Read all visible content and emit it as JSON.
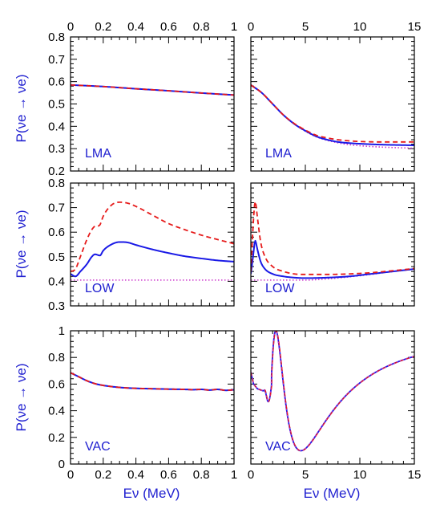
{
  "colors": {
    "solid": "#1a1ae6",
    "dashed": "#e61a1a",
    "dotted": "#cc33cc"
  },
  "y_axis_label": "P(νe → νe)",
  "x_axis_label": "Eν (MeV)",
  "chart_data": [
    {
      "type": "line",
      "label": "LMA",
      "xlim": [
        0,
        1
      ],
      "ylim": [
        0.2,
        0.8
      ],
      "xticks": [
        "0",
        "0.2",
        "0.4",
        "0.6",
        "0.8",
        "1"
      ],
      "yticks": [
        "0.2",
        "0.3",
        "0.4",
        "0.5",
        "0.6",
        "0.7",
        "0.8"
      ],
      "series": [
        {
          "style": "solid",
          "x": [
            0,
            0.2,
            0.4,
            0.6,
            0.8,
            1
          ],
          "y": [
            0.585,
            0.578,
            0.568,
            0.559,
            0.549,
            0.54
          ]
        },
        {
          "style": "dashed",
          "x": [
            0,
            0.2,
            0.4,
            0.6,
            0.8,
            1
          ],
          "y": [
            0.585,
            0.578,
            0.568,
            0.559,
            0.549,
            0.54
          ]
        },
        {
          "style": "dotted",
          "x": [
            0,
            0.2,
            0.4,
            0.6,
            0.8,
            1
          ],
          "y": [
            0.585,
            0.578,
            0.568,
            0.559,
            0.549,
            0.54
          ]
        }
      ]
    },
    {
      "type": "line",
      "label": "LMA",
      "xlim": [
        0,
        15
      ],
      "ylim": [
        0.2,
        0.8
      ],
      "xticks": [
        "0",
        "5",
        "10",
        "15"
      ],
      "yticks": [
        "0.2",
        "0.3",
        "0.4",
        "0.5",
        "0.6",
        "0.7",
        "0.8"
      ],
      "series": [
        {
          "style": "solid",
          "x": [
            0,
            1,
            2,
            3,
            4,
            5,
            6,
            7,
            8,
            9,
            10,
            12,
            15
          ],
          "y": [
            0.585,
            0.55,
            0.5,
            0.45,
            0.41,
            0.38,
            0.355,
            0.34,
            0.33,
            0.325,
            0.322,
            0.318,
            0.315
          ]
        },
        {
          "style": "dashed",
          "x": [
            0,
            1,
            2,
            3,
            4,
            5,
            6,
            7,
            8,
            9,
            10,
            12,
            15
          ],
          "y": [
            0.585,
            0.55,
            0.5,
            0.45,
            0.412,
            0.383,
            0.36,
            0.348,
            0.34,
            0.335,
            0.332,
            0.33,
            0.33
          ]
        },
        {
          "style": "dotted",
          "x": [
            0,
            1,
            2,
            3,
            4,
            5,
            6,
            7,
            8,
            9,
            10,
            12,
            15
          ],
          "y": [
            0.585,
            0.55,
            0.5,
            0.45,
            0.41,
            0.378,
            0.353,
            0.337,
            0.326,
            0.318,
            0.313,
            0.307,
            0.302
          ]
        }
      ]
    },
    {
      "type": "line",
      "label": "LOW",
      "xlim": [
        0,
        1
      ],
      "ylim": [
        0.3,
        0.8
      ],
      "xticks": [
        "0",
        "0.2",
        "0.4",
        "0.6",
        "0.8",
        "1"
      ],
      "yticks": [
        "0.3",
        "0.4",
        "0.5",
        "0.6",
        "0.7",
        "0.8"
      ],
      "series": [
        {
          "style": "solid",
          "x": [
            0,
            0.03,
            0.06,
            0.1,
            0.13,
            0.15,
            0.18,
            0.2,
            0.25,
            0.3,
            0.35,
            0.4,
            0.5,
            0.6,
            0.7,
            0.8,
            0.9,
            1
          ],
          "y": [
            0.43,
            0.42,
            0.44,
            0.47,
            0.5,
            0.51,
            0.505,
            0.525,
            0.55,
            0.56,
            0.558,
            0.548,
            0.53,
            0.515,
            0.502,
            0.493,
            0.485,
            0.48
          ]
        },
        {
          "style": "dashed",
          "x": [
            0,
            0.03,
            0.06,
            0.1,
            0.13,
            0.15,
            0.18,
            0.2,
            0.25,
            0.3,
            0.35,
            0.4,
            0.5,
            0.6,
            0.7,
            0.8,
            0.9,
            1
          ],
          "y": [
            0.44,
            0.45,
            0.5,
            0.57,
            0.61,
            0.625,
            0.63,
            0.665,
            0.71,
            0.722,
            0.718,
            0.705,
            0.67,
            0.635,
            0.61,
            0.588,
            0.57,
            0.553
          ]
        },
        {
          "style": "dotted",
          "x": [
            0,
            1
          ],
          "y": [
            0.405,
            0.405
          ]
        }
      ]
    },
    {
      "type": "line",
      "label": "LOW",
      "xlim": [
        0,
        15
      ],
      "ylim": [
        0.3,
        0.8
      ],
      "xticks": [
        "0",
        "5",
        "10",
        "15"
      ],
      "yticks": [
        "0.3",
        "0.4",
        "0.5",
        "0.6",
        "0.7",
        "0.8"
      ],
      "series": [
        {
          "style": "solid",
          "x": [
            0,
            0.2,
            0.4,
            0.6,
            0.9,
            1.3,
            2,
            3,
            4,
            5,
            7,
            9,
            11,
            13,
            15
          ],
          "y": [
            0.43,
            0.5,
            0.565,
            0.53,
            0.48,
            0.45,
            0.43,
            0.42,
            0.415,
            0.413,
            0.415,
            0.42,
            0.43,
            0.44,
            0.45
          ]
        },
        {
          "style": "dashed",
          "x": [
            0,
            0.2,
            0.4,
            0.6,
            0.9,
            1.3,
            2,
            3,
            4,
            5,
            7,
            9,
            11,
            13,
            15
          ],
          "y": [
            0.44,
            0.62,
            0.725,
            0.66,
            0.56,
            0.5,
            0.46,
            0.44,
            0.43,
            0.428,
            0.428,
            0.43,
            0.435,
            0.443,
            0.452
          ]
        },
        {
          "style": "dotted",
          "x": [
            0,
            1,
            3,
            5,
            7,
            9,
            11,
            13,
            15
          ],
          "y": [
            0.405,
            0.405,
            0.405,
            0.405,
            0.41,
            0.418,
            0.428,
            0.44,
            0.45
          ]
        }
      ]
    },
    {
      "type": "line",
      "label": "VAC",
      "xlim": [
        0,
        1
      ],
      "ylim": [
        0,
        1
      ],
      "xticks": [
        "0",
        "0.2",
        "0.4",
        "0.6",
        "0.8",
        "1"
      ],
      "yticks": [
        "0",
        "0.2",
        "0.4",
        "0.6",
        "0.8",
        "1"
      ],
      "series": [
        {
          "style": "solid",
          "x": [
            0,
            0.05,
            0.1,
            0.15,
            0.2,
            0.3,
            0.4,
            0.5,
            0.6,
            0.7,
            0.75,
            0.8,
            0.85,
            0.9,
            0.95,
            1
          ],
          "y": [
            0.685,
            0.655,
            0.625,
            0.603,
            0.59,
            0.575,
            0.568,
            0.565,
            0.562,
            0.56,
            0.558,
            0.56,
            0.555,
            0.56,
            0.553,
            0.557
          ]
        },
        {
          "style": "dashed",
          "x": [
            0,
            0.05,
            0.1,
            0.15,
            0.2,
            0.3,
            0.4,
            0.5,
            0.6,
            0.7,
            0.75,
            0.8,
            0.85,
            0.9,
            0.95,
            1
          ],
          "y": [
            0.685,
            0.655,
            0.625,
            0.603,
            0.59,
            0.575,
            0.568,
            0.565,
            0.562,
            0.56,
            0.558,
            0.56,
            0.555,
            0.56,
            0.553,
            0.557
          ]
        },
        {
          "style": "dotted",
          "x": [
            0,
            0.05,
            0.1,
            0.15,
            0.2,
            0.3,
            0.4,
            0.5,
            0.6,
            0.7,
            0.75,
            0.8,
            0.85,
            0.9,
            0.95,
            1
          ],
          "y": [
            0.685,
            0.655,
            0.625,
            0.603,
            0.59,
            0.575,
            0.568,
            0.565,
            0.562,
            0.56,
            0.558,
            0.56,
            0.555,
            0.56,
            0.553,
            0.557
          ]
        }
      ]
    },
    {
      "type": "line",
      "label": "VAC",
      "xlim": [
        0,
        15
      ],
      "ylim": [
        0,
        1
      ],
      "xticks": [
        "0",
        "5",
        "10",
        "15"
      ],
      "yticks": [
        "0",
        "0.2",
        "0.4",
        "0.6",
        "0.8",
        "1"
      ],
      "oscillation": {
        "formula": "P = 1 - 0.9*sin^2(C/E)",
        "C": 7.2,
        "start_value": 0.69
      }
    }
  ]
}
